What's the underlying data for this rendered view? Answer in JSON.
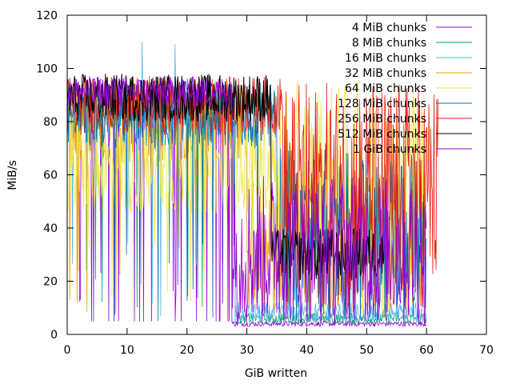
{
  "chart_data": {
    "type": "line",
    "title": "",
    "xlabel": "GiB written",
    "ylabel": "MiB/s",
    "xlim": [
      0,
      70
    ],
    "ylim": [
      0,
      120
    ],
    "x_ticks": [
      0,
      10,
      20,
      30,
      40,
      50,
      60,
      70
    ],
    "y_ticks": [
      0,
      20,
      40,
      60,
      80,
      100,
      120
    ],
    "grid": false,
    "legend_position": "top-right",
    "series": [
      {
        "name": "4 MiB chunks",
        "color": "#9400d3",
        "x_range": [
          0,
          60
        ],
        "phase1_end": 27.5,
        "phase1_band": [
          84,
          96
        ],
        "phase2_band": [
          3,
          5
        ],
        "note_spikes": "periodic drops to ~5 MiB/s in phase 1"
      },
      {
        "name": "8 MiB chunks",
        "color": "#009e73",
        "x_range": [
          0,
          60
        ],
        "phase1_end": 28,
        "phase1_band": [
          78,
          95
        ],
        "phase2_band": [
          4,
          8
        ]
      },
      {
        "name": "16 MiB chunks",
        "color": "#56b4e9",
        "x_range": [
          0,
          60
        ],
        "phase1_end": 28,
        "phase1_band": [
          75,
          95
        ],
        "phase2_band": [
          4,
          12
        ],
        "peaks": [
          [
            12.5,
            110
          ],
          [
            18,
            109
          ]
        ]
      },
      {
        "name": "32 MiB chunks",
        "color": "#e69f00",
        "x_range": [
          0,
          60
        ],
        "phase1_end": 30,
        "phase1_band": [
          65,
          95
        ],
        "phase2_band": [
          8,
          60
        ]
      },
      {
        "name": "64 MiB chunks",
        "color": "#f0e442",
        "x_range": [
          0,
          60
        ],
        "phase1_end": 35,
        "phase1_band": [
          45,
          80
        ],
        "phase2_band": [
          6,
          95
        ]
      },
      {
        "name": "128 MiB chunks",
        "color": "#0072b2",
        "x_range": [
          0,
          60
        ],
        "phase1_end": 35,
        "phase1_band": [
          70,
          95
        ],
        "phase2_band": [
          5,
          70
        ]
      },
      {
        "name": "256 MiB chunks",
        "color": "#e51e10",
        "x_range": [
          0,
          62
        ],
        "phase1_end": 36,
        "phase1_band": [
          75,
          97
        ],
        "phase2_band": [
          10,
          95
        ]
      },
      {
        "name": "512 MiB chunks",
        "color": "#000000",
        "x_range": [
          0,
          53
        ],
        "phase1_end": 34,
        "phase1_band": [
          80,
          98
        ],
        "phase2_band": [
          20,
          40
        ]
      },
      {
        "name": "1 GiB chunks",
        "color": "#9400d3",
        "x_range": [
          0,
          60
        ],
        "phase1_end": 27.5,
        "phase1_band": [
          85,
          97
        ],
        "phase2_band": [
          3,
          60
        ]
      }
    ]
  }
}
